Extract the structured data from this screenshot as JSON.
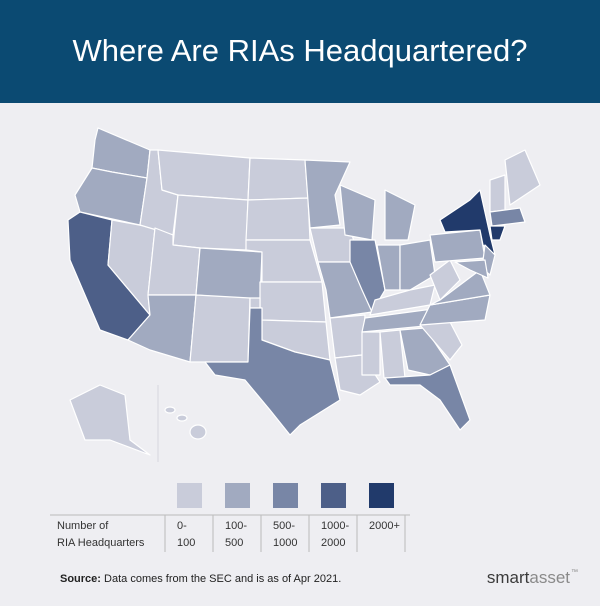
{
  "header": {
    "title": "Where Are RIAs Headquartered?"
  },
  "legend": {
    "title_lines": [
      "Number of",
      "RIA Headquarters"
    ],
    "items": [
      {
        "label_lines": [
          "0-",
          "100"
        ],
        "color": "#c9ccda"
      },
      {
        "label_lines": [
          "100-",
          "500"
        ],
        "color": "#a1aac0"
      },
      {
        "label_lines": [
          "500-",
          "1000"
        ],
        "color": "#7886a6"
      },
      {
        "label_lines": [
          "1000-",
          "2000"
        ],
        "color": "#4d5f88"
      },
      {
        "label_lines": [
          "2000+"
        ],
        "color": "#213a6b"
      }
    ]
  },
  "footer": {
    "source_label": "Source:",
    "source_text": "Data comes from the SEC and is as of Apr 2021.",
    "brand": [
      "smart",
      "asset"
    ],
    "trademark": "™"
  }
}
